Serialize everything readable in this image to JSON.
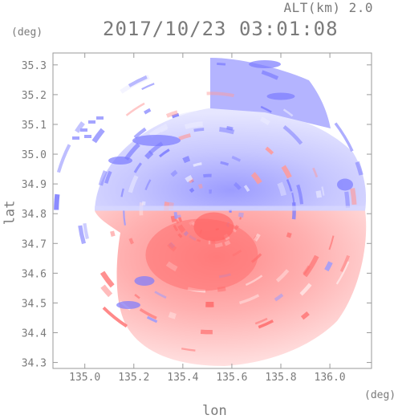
{
  "header": {
    "altitude_label": "ALT(km) 2.0",
    "timestamp": "2017/10/23 03:01:08"
  },
  "axes": {
    "x_label": "lon",
    "y_label": "lat",
    "x_unit": "(deg)",
    "y_unit": "(deg)",
    "x_range": [
      134.87,
      136.17
    ],
    "y_range": [
      34.28,
      35.34
    ],
    "x_ticks": [
      "135.0",
      "135.2",
      "135.4",
      "135.6",
      "135.8",
      "136.0"
    ],
    "y_ticks": [
      "34.3",
      "34.4",
      "34.5",
      "34.6",
      "34.7",
      "34.8",
      "34.9",
      "35.0",
      "35.1",
      "35.2",
      "35.3"
    ]
  },
  "colors": {
    "receding": "#ff7f7f",
    "approaching": "#8585ff",
    "frame": "#9a9a9a",
    "text": "#7a7a7a"
  },
  "map": {
    "type": "doppler-radar-velocity-ppi",
    "radar_site": {
      "lon": 135.51,
      "lat": 34.81
    }
  }
}
